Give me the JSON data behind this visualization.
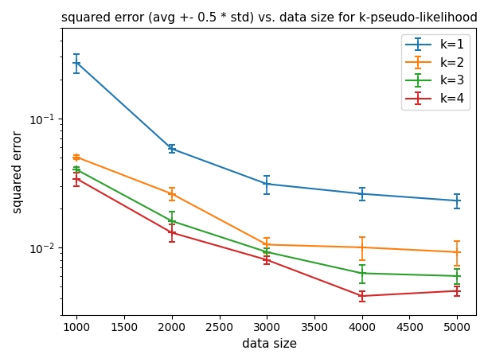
{
  "title": "squared error (avg +- 0.5 * std) vs. data size for k-pseudo-likelihood",
  "xlabel": "data size",
  "ylabel": "squared error",
  "x": [
    1000,
    2000,
    3000,
    4000,
    5000
  ],
  "series": [
    {
      "label": "k=1",
      "color": "#1f77b4",
      "y": [
        0.27,
        0.058,
        0.031,
        0.026,
        0.023
      ],
      "yerr": [
        0.045,
        0.004,
        0.005,
        0.003,
        0.003
      ]
    },
    {
      "label": "k=2",
      "color": "#ff7f0e",
      "y": [
        0.05,
        0.026,
        0.0105,
        0.01,
        0.0092
      ],
      "yerr": [
        0.002,
        0.003,
        0.0014,
        0.002,
        0.002
      ]
    },
    {
      "label": "k=3",
      "color": "#2ca02c",
      "y": [
        0.04,
        0.016,
        0.0092,
        0.0063,
        0.006
      ],
      "yerr": [
        0.002,
        0.003,
        0.0007,
        0.001,
        0.0008
      ]
    },
    {
      "label": "k=4",
      "color": "#d62728",
      "y": [
        0.034,
        0.013,
        0.008,
        0.0042,
        0.0046
      ],
      "yerr": [
        0.004,
        0.002,
        0.0006,
        0.0004,
        0.0004
      ]
    }
  ],
  "ylim": [
    0.003,
    0.5
  ],
  "xlim": [
    850,
    5200
  ],
  "figsize": [
    6.13,
    4.55
  ],
  "dpi": 100
}
